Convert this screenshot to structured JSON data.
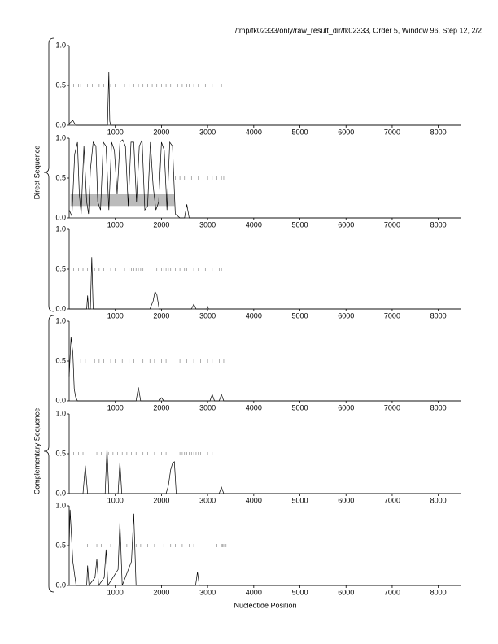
{
  "header": "/tmp/fk02333/only/raw_result_dir/fk02333, Order 5, Window 96, Step 12, 2/2",
  "groups": [
    "Direct Sequence",
    "Complementary Sequence"
  ],
  "xlabel": "Nucleotide Position",
  "chart_data": [
    {
      "type": "line",
      "xlim": [
        0,
        8500
      ],
      "ylim": [
        0,
        1
      ],
      "xticks": [
        1000,
        2000,
        3000,
        4000,
        5000,
        6000,
        7000,
        8000
      ],
      "yticks": [
        {
          "value": 0,
          "label": "0.0"
        },
        0.5,
        {
          "value": 1,
          "label": "1.0"
        }
      ],
      "x": [
        0,
        80,
        120,
        160,
        200,
        830,
        860,
        880,
        900,
        8500
      ],
      "series": [
        {
          "color": "#000000",
          "values": [
            0.02,
            0.06,
            0.02,
            0,
            0,
            0,
            0.67,
            0.05,
            0,
            0
          ]
        }
      ],
      "stop_marks": [
        100,
        200,
        250,
        400,
        500,
        650,
        750,
        900,
        1000,
        1100,
        1200,
        1300,
        1400,
        1500,
        1600,
        1700,
        1800,
        1900,
        2000,
        2100,
        2200,
        2350,
        2450,
        2550,
        2600,
        2700,
        2800,
        2950,
        3100,
        3300
      ]
    },
    {
      "type": "line",
      "xlim": [
        0,
        8500
      ],
      "ylim": [
        0,
        1
      ],
      "xticks": [
        1000,
        2000,
        3000,
        4000,
        5000,
        6000,
        7000,
        8000
      ],
      "yticks": [
        {
          "value": 0,
          "label": "0.0"
        },
        0.5,
        {
          "value": 1,
          "label": "1.0"
        }
      ],
      "x": [
        0,
        60,
        120,
        180,
        220,
        260,
        320,
        380,
        420,
        460,
        520,
        580,
        620,
        680,
        740,
        800,
        860,
        920,
        980,
        1040,
        1100,
        1160,
        1220,
        1280,
        1340,
        1400,
        1460,
        1520,
        1580,
        1640,
        1700,
        1760,
        1820,
        1880,
        1940,
        2000,
        2060,
        2120,
        2180,
        2240,
        2300,
        2400,
        2500,
        2550,
        2600,
        8500
      ],
      "series": [
        {
          "color": "#000000",
          "values": [
            0.1,
            0.02,
            0.8,
            0.95,
            0.3,
            0.05,
            0.9,
            0.2,
            0.05,
            0.6,
            0.95,
            0.9,
            0.2,
            0.1,
            0.95,
            0.9,
            0.1,
            0.95,
            0.85,
            0.3,
            0.95,
            0.98,
            0.9,
            0.15,
            0.95,
            0.95,
            0.2,
            0.9,
            0.98,
            0.1,
            0.15,
            0.95,
            0.4,
            0.1,
            0.2,
            0.95,
            0.85,
            0.1,
            0.95,
            0.9,
            0.05,
            0,
            0,
            0.17,
            0,
            0
          ]
        }
      ],
      "stop_marks": [
        2300,
        2400,
        2500,
        2650,
        2800,
        2900,
        3000,
        3100,
        3200,
        3300,
        3350
      ],
      "regions": [
        [
          30,
          2280
        ]
      ]
    },
    {
      "type": "line",
      "xlim": [
        0,
        8500
      ],
      "ylim": [
        0,
        1
      ],
      "xticks": [
        1000,
        2000,
        3000,
        4000,
        5000,
        6000,
        7000,
        8000
      ],
      "yticks": [
        {
          "value": 0,
          "label": "0.0"
        },
        0.5,
        {
          "value": 1,
          "label": "1.0"
        }
      ],
      "x": [
        0,
        380,
        400,
        420,
        460,
        490,
        520,
        1750,
        1820,
        1860,
        1900,
        1950,
        2650,
        2700,
        2750,
        2980,
        3000,
        3020,
        8500
      ],
      "series": [
        {
          "color": "#000000",
          "values": [
            0,
            0,
            0.17,
            0,
            0,
            0.65,
            0,
            0,
            0.1,
            0.22,
            0.18,
            0,
            0,
            0.06,
            0,
            0,
            0.03,
            0,
            0
          ]
        }
      ],
      "stop_marks": [
        100,
        200,
        300,
        400,
        550,
        650,
        750,
        900,
        1000,
        1100,
        1200,
        1300,
        1350,
        1400,
        1450,
        1500,
        1550,
        1600,
        1900,
        2000,
        2050,
        2100,
        2150,
        2200,
        2300,
        2400,
        2500,
        2550,
        2700,
        2800,
        2950,
        3100,
        3250,
        3300
      ]
    },
    {
      "type": "line",
      "xlim": [
        0,
        8500
      ],
      "ylim": [
        0,
        1
      ],
      "xticks": [
        1000,
        2000,
        3000,
        4000,
        5000,
        6000,
        7000,
        8000
      ],
      "yticks": [
        {
          "value": 0,
          "label": "0.0"
        },
        0.5,
        {
          "value": 1,
          "label": "1.0"
        }
      ],
      "x": [
        0,
        40,
        80,
        110,
        140,
        180,
        1450,
        1500,
        1550,
        1950,
        2000,
        2050,
        3050,
        3100,
        3150,
        3250,
        3300,
        3350,
        8500
      ],
      "series": [
        {
          "color": "#000000",
          "values": [
            0.3,
            0.8,
            0.6,
            0.15,
            0.05,
            0,
            0,
            0.17,
            0,
            0,
            0.04,
            0,
            0,
            0.08,
            0,
            0,
            0.08,
            0,
            0
          ]
        }
      ],
      "stop_marks": [
        150,
        250,
        350,
        450,
        550,
        650,
        750,
        900,
        1000,
        1150,
        1300,
        1400,
        1600,
        1750,
        1850,
        2000,
        2100,
        2250,
        2400,
        2550,
        2700,
        2850,
        3000,
        3100,
        3250,
        3350
      ]
    },
    {
      "type": "line",
      "xlim": [
        0,
        8500
      ],
      "ylim": [
        0,
        1
      ],
      "xticks": [
        1000,
        2000,
        3000,
        4000,
        5000,
        6000,
        7000,
        8000
      ],
      "yticks": [
        {
          "value": 0,
          "label": "0.0"
        },
        0.5,
        {
          "value": 1,
          "label": "1.0"
        }
      ],
      "x": [
        0,
        300,
        350,
        400,
        780,
        820,
        860,
        1060,
        1100,
        1140,
        2100,
        2150,
        2200,
        2240,
        2280,
        2320,
        3250,
        3300,
        3350,
        8500
      ],
      "series": [
        {
          "color": "#000000",
          "values": [
            0,
            0,
            0.35,
            0,
            0,
            0.58,
            0,
            0,
            0.4,
            0,
            0,
            0.1,
            0.3,
            0.38,
            0.4,
            0,
            0,
            0.08,
            0,
            0
          ]
        }
      ],
      "stop_marks": [
        100,
        200,
        300,
        450,
        600,
        700,
        850,
        950,
        1050,
        1150,
        1250,
        1350,
        1450,
        1600,
        1700,
        1850,
        2000,
        2100,
        2400,
        2450,
        2500,
        2550,
        2600,
        2650,
        2700,
        2750,
        2800,
        2850,
        2900,
        3000,
        3100
      ]
    },
    {
      "type": "line",
      "xlim": [
        0,
        8500
      ],
      "ylim": [
        0,
        1
      ],
      "xticks": [
        1000,
        2000,
        3000,
        4000,
        5000,
        6000,
        7000,
        8000
      ],
      "yticks": [
        {
          "value": 0,
          "label": "0.0"
        },
        0.5,
        {
          "value": 1,
          "label": "1.0"
        }
      ],
      "x": [
        0,
        20,
        80,
        150,
        380,
        400,
        430,
        560,
        600,
        640,
        760,
        800,
        840,
        1060,
        1100,
        1150,
        1350,
        1400,
        1450,
        2740,
        2780,
        2820,
        8500
      ],
      "series": [
        {
          "color": "#000000",
          "values": [
            0.5,
            0.95,
            0.3,
            0,
            0,
            0.25,
            0,
            0.1,
            0.33,
            0,
            0.1,
            0.45,
            0,
            0.2,
            0.8,
            0,
            0.3,
            0.9,
            0,
            0,
            0.17,
            0,
            0
          ]
        }
      ],
      "stop_marks": [
        150,
        400,
        600,
        700,
        900,
        1100,
        1250,
        1450,
        1550,
        1700,
        1850,
        2050,
        2200,
        2300,
        2450,
        2600,
        2700,
        3200,
        3300,
        3320,
        3350,
        3380,
        3400
      ]
    }
  ]
}
